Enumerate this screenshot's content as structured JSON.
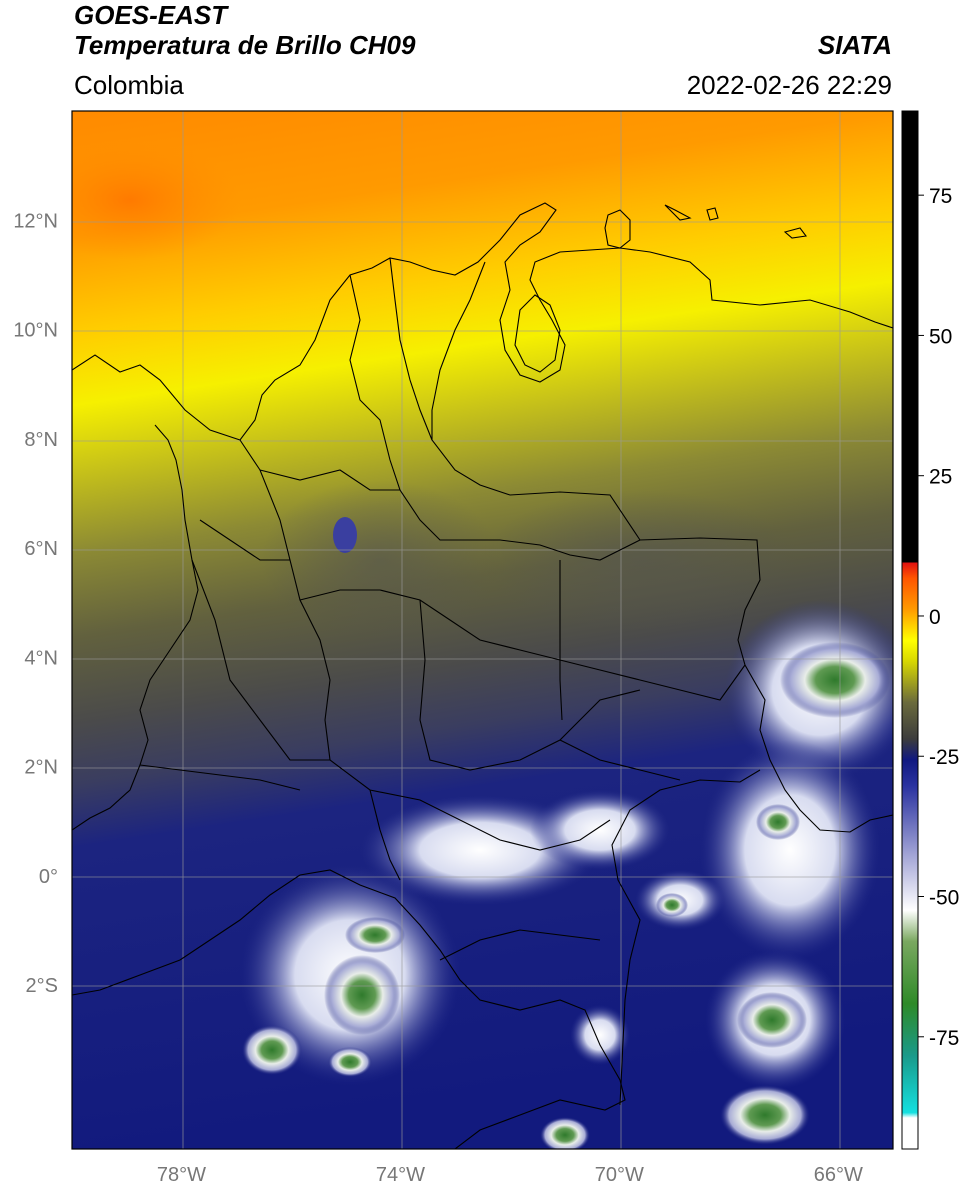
{
  "header": {
    "satellite": "GOES-EAST",
    "product": "Temperatura de Brillo CH09",
    "region": "Colombia",
    "source": "SIATA",
    "datetime": "2022-02-26 22:29"
  },
  "map": {
    "lon_range": [
      -80,
      -65
    ],
    "lat_range": [
      -5,
      14
    ],
    "lon_ticks": [
      {
        "value": -78,
        "label": "78°W"
      },
      {
        "value": -74,
        "label": "74°W"
      },
      {
        "value": -70,
        "label": "70°W"
      },
      {
        "value": -66,
        "label": "66°W"
      }
    ],
    "lat_ticks": [
      {
        "value": 12,
        "label": "12°N"
      },
      {
        "value": 10,
        "label": "10°N"
      },
      {
        "value": 8,
        "label": "8°N"
      },
      {
        "value": 6,
        "label": "6°N"
      },
      {
        "value": 4,
        "label": "4°N"
      },
      {
        "value": 2,
        "label": "2°N"
      },
      {
        "value": 0,
        "label": "0°"
      },
      {
        "value": -2,
        "label": "2°S"
      }
    ],
    "gridlines": true
  },
  "colorbar": {
    "range": [
      -95,
      90
    ],
    "ticks": [
      {
        "value": 75,
        "label": "75"
      },
      {
        "value": 50,
        "label": "50"
      },
      {
        "value": 25,
        "label": "25"
      },
      {
        "value": 0,
        "label": "0"
      },
      {
        "value": -25,
        "label": "-25"
      },
      {
        "value": -50,
        "label": "-50"
      },
      {
        "value": -75,
        "label": "-75"
      }
    ],
    "colors": {
      "white_low": "#ffffff",
      "cyan": "#14d8d0",
      "green": "#3a8a30",
      "white": "#ffffff",
      "navy": "#101880",
      "gray": "#4a4a48",
      "yellow": "#ffff00",
      "orange": "#ff8c00",
      "red": "#e01010",
      "black": "#000000"
    }
  }
}
